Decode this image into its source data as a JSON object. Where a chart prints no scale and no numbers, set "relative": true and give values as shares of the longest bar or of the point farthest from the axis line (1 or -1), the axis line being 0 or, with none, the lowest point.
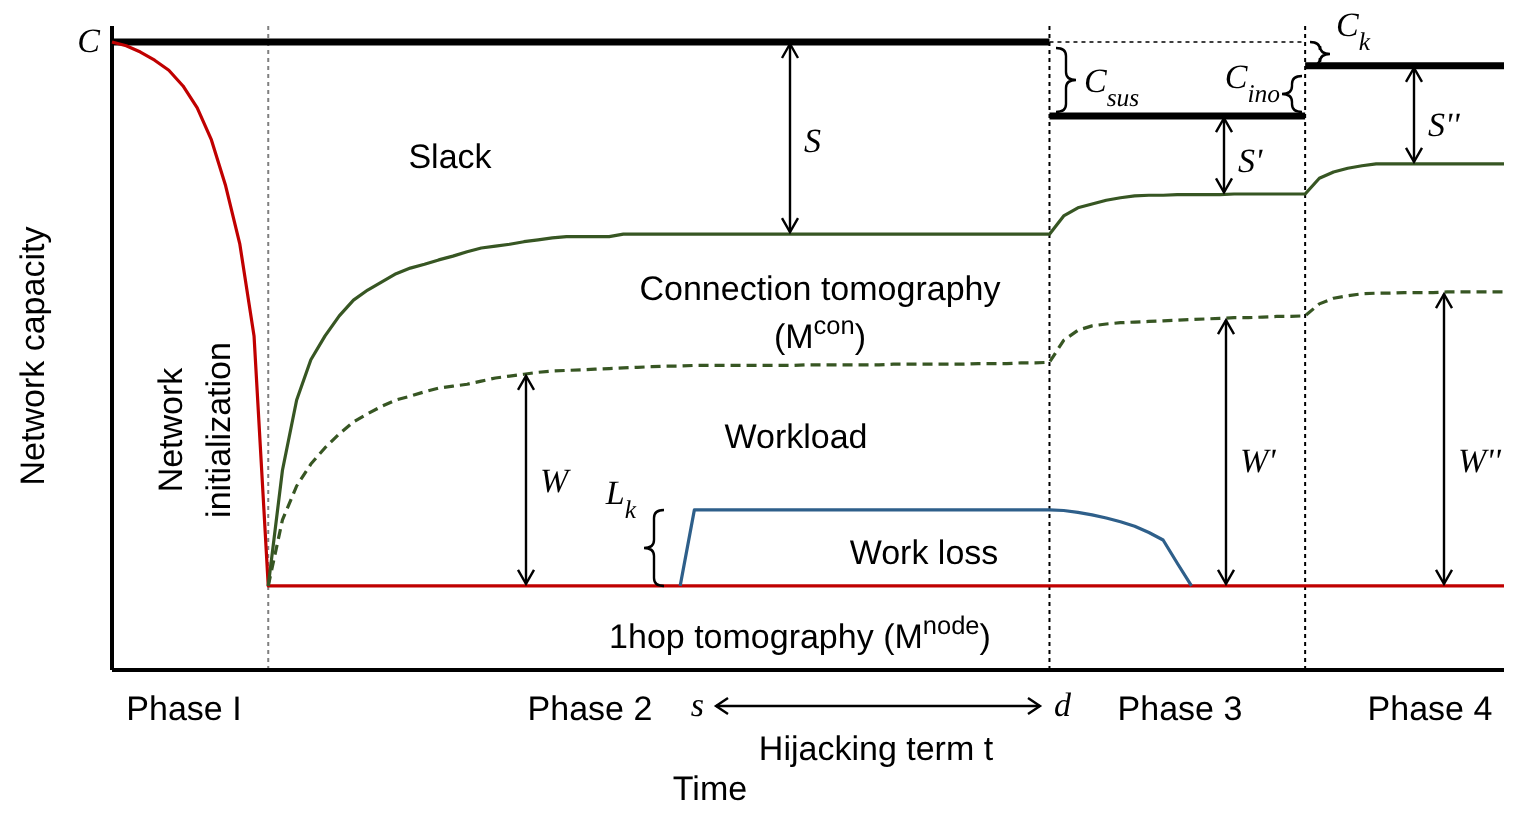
{
  "chart_data": {
    "type": "line",
    "relative": true,
    "xlabel": "Time",
    "ylabel": "Network capacity",
    "categories": [
      null,
      null,
      null,
      null,
      null,
      null,
      null,
      null,
      null,
      null,
      null,
      null,
      null,
      null,
      null,
      null,
      null,
      null,
      null,
      null,
      null,
      null,
      null,
      null,
      null,
      null,
      null,
      null,
      null,
      null,
      null,
      null,
      null,
      null,
      null,
      null,
      null,
      null,
      null,
      null,
      null,
      null,
      null,
      null,
      null,
      null,
      null,
      null,
      null,
      null,
      null,
      null,
      null,
      null,
      null,
      null,
      null,
      null,
      null,
      null,
      null,
      null,
      null,
      null,
      null,
      null,
      null,
      null,
      null,
      null,
      null,
      null,
      null,
      null,
      null,
      null,
      null,
      null,
      null,
      null,
      null,
      null,
      null,
      null,
      null,
      null,
      null,
      null,
      null,
      null,
      null,
      null,
      null,
      null,
      null,
      null,
      null,
      null,
      null
    ],
    "series": [
      {
        "color": "#000000",
        "values": [
          1,
          1,
          1,
          1,
          1,
          1,
          1,
          1,
          1,
          1,
          1,
          1,
          1,
          1,
          1,
          1,
          1,
          1,
          1,
          1,
          1,
          1,
          1,
          1,
          1,
          1,
          1,
          1,
          1,
          1,
          1,
          1,
          1,
          1,
          1,
          1,
          1,
          1,
          1,
          1,
          1,
          1,
          1,
          1,
          1,
          1,
          1,
          1,
          1,
          1,
          1,
          1,
          1,
          1,
          1,
          1,
          1,
          1,
          1,
          1,
          1,
          1,
          1,
          1,
          1,
          1,
          1,
          null,
          null,
          null,
          null,
          null,
          null,
          null,
          null,
          null,
          null,
          null,
          null,
          null,
          null,
          null,
          null,
          null,
          null,
          null,
          null,
          null,
          null,
          null,
          null,
          null,
          null,
          null,
          null,
          null,
          null,
          null,
          null
        ]
      },
      {
        "color": "#000000",
        "values": [
          null,
          null,
          null,
          null,
          null,
          null,
          null,
          null,
          null,
          null,
          null,
          null,
          null,
          null,
          null,
          null,
          null,
          null,
          null,
          null,
          null,
          null,
          null,
          null,
          null,
          null,
          null,
          null,
          null,
          null,
          null,
          null,
          null,
          null,
          null,
          null,
          null,
          null,
          null,
          null,
          null,
          null,
          null,
          null,
          null,
          null,
          null,
          null,
          null,
          null,
          null,
          null,
          null,
          null,
          null,
          null,
          null,
          null,
          null,
          null,
          null,
          null,
          null,
          null,
          null,
          null,
          0.882,
          0.882,
          0.882,
          0.882,
          0.882,
          0.882,
          0.882,
          0.882,
          0.882,
          0.882,
          0.882,
          0.882,
          0.882,
          0.882,
          0.882,
          0.882,
          0.882,
          0.882,
          0.882,
          null,
          null,
          null,
          null,
          null,
          null,
          null,
          null,
          null,
          null,
          null,
          null,
          null,
          null
        ]
      },
      {
        "color": "#000000",
        "values": [
          null,
          null,
          null,
          null,
          null,
          null,
          null,
          null,
          null,
          null,
          null,
          null,
          null,
          null,
          null,
          null,
          null,
          null,
          null,
          null,
          null,
          null,
          null,
          null,
          null,
          null,
          null,
          null,
          null,
          null,
          null,
          null,
          null,
          null,
          null,
          null,
          null,
          null,
          null,
          null,
          null,
          null,
          null,
          null,
          null,
          null,
          null,
          null,
          null,
          null,
          null,
          null,
          null,
          null,
          null,
          null,
          null,
          null,
          null,
          null,
          null,
          null,
          null,
          null,
          null,
          null,
          null,
          null,
          null,
          null,
          null,
          null,
          null,
          null,
          null,
          null,
          null,
          null,
          null,
          null,
          null,
          null,
          null,
          null,
          0.962,
          0.962,
          0.962,
          0.962,
          0.962,
          0.962,
          0.962,
          0.962,
          0.962,
          0.962,
          0.962,
          0.962,
          0.962,
          0.962,
          0.962
        ]
      },
      {
        "color": "#c00000",
        "values": [
          1,
          0.994,
          0.984,
          0.971,
          0.955,
          0.93,
          0.895,
          0.844,
          0.771,
          0.678,
          0.532,
          0.134,
          0.134,
          0.134,
          0.134,
          0.134,
          0.134,
          0.134,
          0.134,
          0.134,
          0.134,
          0.134,
          0.134,
          0.134,
          0.134,
          0.134,
          0.134,
          0.134,
          0.134,
          0.134,
          0.134,
          0.134,
          0.134,
          0.134,
          0.134,
          0.134,
          0.134,
          0.134,
          0.134,
          0.134,
          0.134,
          0.134,
          0.134,
          0.134,
          0.134,
          0.134,
          0.134,
          0.134,
          0.134,
          0.134,
          0.134,
          0.134,
          0.134,
          0.134,
          0.134,
          0.134,
          0.134,
          0.134,
          0.134,
          0.134,
          0.134,
          0.134,
          0.134,
          0.134,
          0.134,
          0.134,
          0.134,
          0.134,
          0.134,
          0.134,
          0.134,
          0.134,
          0.134,
          0.134,
          0.134,
          0.134,
          0.134,
          0.134,
          0.134,
          0.134,
          0.134,
          0.134,
          0.134,
          0.134,
          0.134,
          0.134,
          0.134,
          0.134,
          0.134,
          0.134,
          0.134,
          0.134,
          0.134,
          0.134,
          0.134,
          0.134,
          0.134,
          0.134,
          0.134
        ]
      },
      {
        "color": "#375623",
        "values": [
          null,
          null,
          null,
          null,
          null,
          null,
          null,
          null,
          null,
          null,
          null,
          0.134,
          0.318,
          0.43,
          0.494,
          0.532,
          0.564,
          0.589,
          0.605,
          0.618,
          0.631,
          0.64,
          0.646,
          0.653,
          0.659,
          0.666,
          0.672,
          0.675,
          0.678,
          0.682,
          0.685,
          0.688,
          0.69,
          0.69,
          0.69,
          0.69,
          0.694,
          0.694,
          0.694,
          0.694,
          0.694,
          0.694,
          0.694,
          0.694,
          0.694,
          0.694,
          0.694,
          0.694,
          0.694,
          0.694,
          0.694,
          0.694,
          0.694,
          0.694,
          0.694,
          0.694,
          0.694,
          0.694,
          0.694,
          0.694,
          0.694,
          0.694,
          0.694,
          0.694,
          0.694,
          0.694,
          0.694,
          0.723,
          0.736,
          0.742,
          0.748,
          0.752,
          0.755,
          0.756,
          0.756,
          0.757,
          0.757,
          0.757,
          0.757,
          0.758,
          0.758,
          0.758,
          0.758,
          0.758,
          0.758,
          0.783,
          0.793,
          0.799,
          0.803,
          0.806,
          0.806,
          0.806,
          0.806,
          0.806,
          0.806,
          0.806,
          0.806,
          0.806,
          0.806
        ]
      },
      {
        "color": "#375623",
        "line_style": "dashed",
        "values": [
          null,
          null,
          null,
          null,
          null,
          null,
          null,
          null,
          null,
          null,
          null,
          0.134,
          0.239,
          0.293,
          0.328,
          0.354,
          0.376,
          0.395,
          0.408,
          0.42,
          0.43,
          0.436,
          0.443,
          0.449,
          0.452,
          0.455,
          0.46,
          0.465,
          0.468,
          0.471,
          0.474,
          0.476,
          0.477,
          0.478,
          0.479,
          0.48,
          0.481,
          0.482,
          0.483,
          0.484,
          0.484,
          0.485,
          0.485,
          0.485,
          0.485,
          0.485,
          0.485,
          0.485,
          0.485,
          0.486,
          0.486,
          0.486,
          0.486,
          0.486,
          0.486,
          0.487,
          0.487,
          0.487,
          0.487,
          0.487,
          0.487,
          0.488,
          0.488,
          0.488,
          0.489,
          0.489,
          0.49,
          0.525,
          0.541,
          0.548,
          0.551,
          0.553,
          0.554,
          0.555,
          0.556,
          0.557,
          0.558,
          0.559,
          0.56,
          0.561,
          0.561,
          0.562,
          0.563,
          0.563,
          0.564,
          0.583,
          0.592,
          0.596,
          0.599,
          0.6,
          0.6,
          0.601,
          0.601,
          0.601,
          0.602,
          0.602,
          0.602,
          0.602,
          0.602
        ]
      },
      {
        "color": "#2e5f8a",
        "values": [
          null,
          null,
          null,
          null,
          null,
          null,
          null,
          null,
          null,
          null,
          null,
          null,
          null,
          null,
          null,
          null,
          null,
          null,
          null,
          null,
          null,
          null,
          null,
          null,
          null,
          null,
          null,
          null,
          null,
          null,
          null,
          null,
          null,
          null,
          null,
          null,
          null,
          null,
          null,
          null,
          0.134,
          0.255,
          0.255,
          0.255,
          0.255,
          0.255,
          0.255,
          0.255,
          0.255,
          0.255,
          0.255,
          0.255,
          0.255,
          0.255,
          0.255,
          0.255,
          0.255,
          0.255,
          0.255,
          0.255,
          0.255,
          0.255,
          0.255,
          0.255,
          0.255,
          0.255,
          0.255,
          0.254,
          0.251,
          0.247,
          0.242,
          0.236,
          0.229,
          0.219,
          0.207,
          0.17,
          0.134,
          null,
          null,
          null,
          null,
          null,
          null,
          null,
          null,
          null,
          null,
          null,
          null,
          null,
          null,
          null,
          null,
          null,
          null,
          null,
          null,
          null,
          null
        ]
      }
    ],
    "annotations": [
      "C",
      "Slack",
      "Network initialization",
      "Workload",
      "Work loss",
      "Phase I",
      "Phase 2",
      "Phase 3",
      "Phase 4",
      "s",
      "d",
      "Hijacking term t",
      "C$_{sus}$",
      "C$_{ino}$",
      "C$_{k}$",
      "L$_{k}$",
      "Connection tomography (M$^{con}$)",
      "1hop tomography (M$^{node}$)",
      "S",
      "W",
      "S'",
      "S''",
      "W'",
      "W''"
    ]
  }
}
